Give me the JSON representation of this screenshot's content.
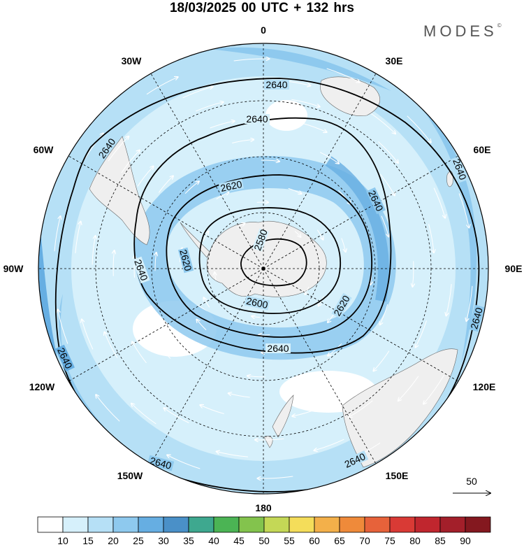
{
  "title": "18/03/2025  00 UTC  + 132 hrs",
  "brand": "MODES",
  "brand_mark": "©",
  "longitude_labels": [
    {
      "text": "0",
      "lon": 0
    },
    {
      "text": "30E",
      "lon": 30
    },
    {
      "text": "60E",
      "lon": 60
    },
    {
      "text": "90E",
      "lon": 90
    },
    {
      "text": "120E",
      "lon": 120
    },
    {
      "text": "150E",
      "lon": 150
    },
    {
      "text": "180",
      "lon": 180
    },
    {
      "text": "150W",
      "lon": -150
    },
    {
      "text": "120W",
      "lon": -120
    },
    {
      "text": "90W",
      "lon": -90
    },
    {
      "text": "60W",
      "lon": -60
    },
    {
      "text": "30W",
      "lon": -30
    }
  ],
  "contours": [
    {
      "value": "2580",
      "labels": [
        "2580"
      ]
    },
    {
      "value": "2600",
      "labels": [
        "2600"
      ]
    },
    {
      "value": "2620",
      "labels": [
        "2620",
        "2620",
        "2620"
      ]
    },
    {
      "value": "2640",
      "labels": [
        "2640",
        "2640",
        "2640",
        "2640",
        "2640",
        "2640",
        "2640",
        "2640",
        "2640",
        "2640"
      ]
    }
  ],
  "reference_vector": {
    "label": "50"
  },
  "colorbar": {
    "ticks": [
      "10",
      "15",
      "20",
      "25",
      "30",
      "35",
      "40",
      "45",
      "50",
      "55",
      "60",
      "65",
      "70",
      "75",
      "80",
      "85",
      "90"
    ],
    "colors": [
      "#ffffff",
      "#d6f0fb",
      "#b6e0f6",
      "#8ec9ee",
      "#66aee2",
      "#4a90c8",
      "#3ea88f",
      "#4bb454",
      "#83c34d",
      "#c4d856",
      "#f4dd5a",
      "#f3b04a",
      "#ef8a3a",
      "#e7623a",
      "#d93a35",
      "#c0262e",
      "#a31f2a",
      "#84181f"
    ]
  },
  "map_colors": {
    "ocean": "#ffffff",
    "land": "#efefef",
    "speed_light": "#d6f0fb",
    "speed_mid": "#b6e0f6",
    "speed_strong": "#8ec9ee",
    "speed_max": "#66aee2"
  }
}
